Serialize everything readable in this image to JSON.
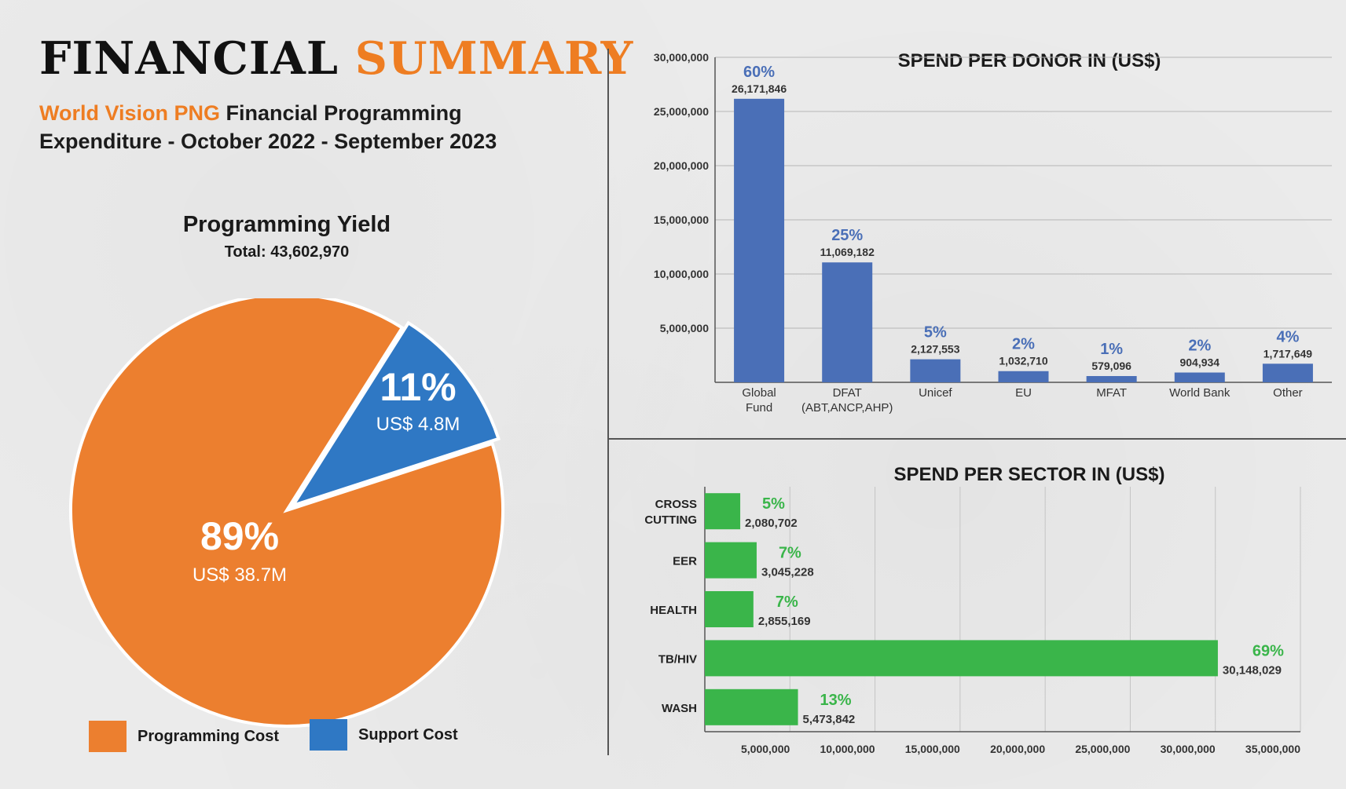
{
  "header": {
    "title_part1": "FINANCIAL",
    "title_part2": "SUMMARY",
    "subtitle_org": "World Vision PNG",
    "subtitle_line1_rest": " Financial Programming",
    "subtitle_line2": "Expenditure - October 2022 - September 2023"
  },
  "colors": {
    "accent_orange": "#ee7d22",
    "pie_orange": "#ec7f2f",
    "pie_blue": "#2f78c4",
    "bar_blue": "#4a6fb7",
    "pct_blue": "#4a6fb7",
    "bar_green": "#3ab54a",
    "pct_green": "#3ab54a"
  },
  "chart_data": [
    {
      "type": "pie",
      "title": "Programming Yield",
      "total_label": "Total: 43,602,970",
      "slices": [
        {
          "name": "Programming Cost",
          "percent_label": "89%",
          "amount_label": "US$ 38.7M",
          "value": 38.7
        },
        {
          "name": "Support Cost",
          "percent_label": "11%",
          "amount_label": "US$ 4.8M",
          "value": 4.8
        }
      ],
      "legend": [
        "Programming Cost",
        "Support Cost"
      ]
    },
    {
      "type": "bar",
      "title": "SPEND PER DONOR IN (US$)",
      "ylim": [
        0,
        30000000
      ],
      "yticks": [
        "5,000,000",
        "10,000,000",
        "15,000,000",
        "20,000,000",
        "25,000,000",
        "30,000,000"
      ],
      "ytick_values": [
        5000000,
        10000000,
        15000000,
        20000000,
        25000000,
        30000000
      ],
      "categories": [
        [
          "Global",
          "Fund"
        ],
        [
          "DFAT",
          "(ABT,ANCP,AHP)"
        ],
        [
          "Unicef"
        ],
        [
          "EU"
        ],
        [
          "MFAT"
        ],
        [
          "World Bank"
        ],
        [
          "Other"
        ]
      ],
      "values": [
        26171846,
        11069182,
        2127553,
        1032710,
        579096,
        904934,
        1717649
      ],
      "value_labels": [
        "26,171,846",
        "11,069,182",
        "2,127,553",
        "1,032,710",
        "579,096",
        "904,934",
        "1,717,649"
      ],
      "percent_labels": [
        "60%",
        "25%",
        "5%",
        "2%",
        "1%",
        "2%",
        "4%"
      ]
    },
    {
      "type": "bar",
      "orientation": "horizontal",
      "title": "SPEND PER SECTOR IN (US$)",
      "xlim": [
        0,
        35000000
      ],
      "xticks": [
        "5,000,000",
        "10,000,000",
        "15,000,000",
        "20,000,000",
        "25,000,000",
        "30,000,000",
        "35,000,000"
      ],
      "xtick_values": [
        5000000,
        10000000,
        15000000,
        20000000,
        25000000,
        30000000,
        35000000
      ],
      "categories": [
        [
          "CROSS",
          "CUTTING"
        ],
        [
          "EER"
        ],
        [
          "HEALTH"
        ],
        [
          "TB/HIV"
        ],
        [
          "WASH"
        ]
      ],
      "values": [
        2080702,
        3045228,
        2855169,
        30148029,
        5473842
      ],
      "value_labels": [
        "2,080,702",
        "3,045,228",
        "2,855,169",
        "30,148,029",
        "5,473,842"
      ],
      "percent_labels": [
        "5%",
        "7%",
        "7%",
        "69%",
        "13%"
      ]
    }
  ]
}
